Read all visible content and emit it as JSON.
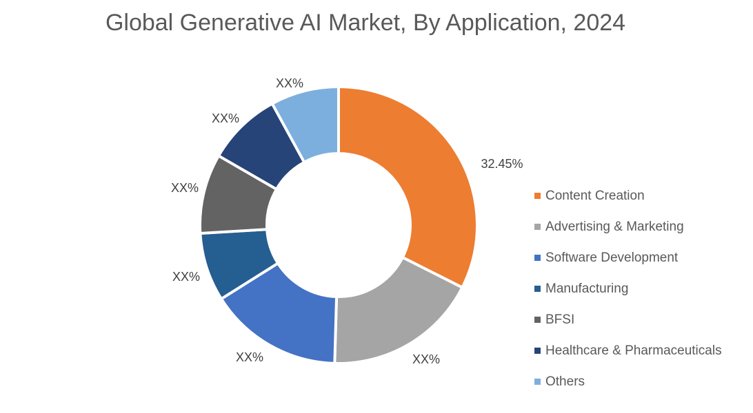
{
  "chart_data": {
    "type": "pie",
    "donut": true,
    "title": "Global Generative AI Market, By Application, 2024",
    "categories": [
      "Content Creation",
      "Advertising & Marketing",
      "Software Development",
      "Manufacturing",
      "BFSI",
      "Healthcare & Pharmaceuticals",
      "Others"
    ],
    "values": [
      32.45,
      18.0,
      15.6,
      8.0,
      9.3,
      8.7,
      7.95
    ],
    "data_labels": [
      "32.45%",
      "XX%",
      "XX%",
      "XX%",
      "XX%",
      "XX%",
      "XX%"
    ],
    "colors": [
      "#ED7D31",
      "#A5A5A5",
      "#4472C4",
      "#255E91",
      "#636363",
      "#264478",
      "#7CAFDD"
    ],
    "legend_position": "right"
  }
}
